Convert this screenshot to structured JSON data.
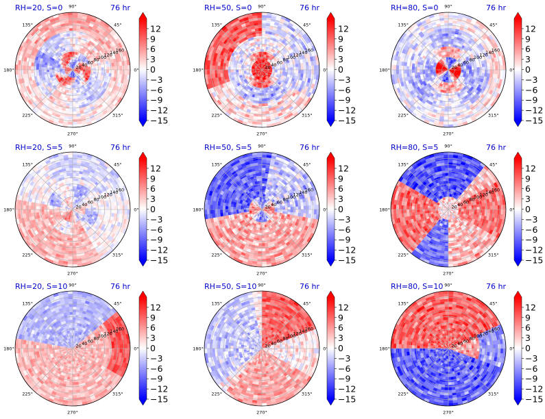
{
  "figure": {
    "colormap": {
      "low": "#0000ff",
      "mid": "#ffffff",
      "high": "#ff0000"
    },
    "title_color": "#0000cc"
  },
  "chart_data": [
    {
      "type": "heatmap",
      "title": "RH=20, S=0",
      "time_label": "76 hr",
      "pattern": "concentric core, ring of blue/red near center",
      "rh": 20,
      "s": 0
    },
    {
      "type": "heatmap",
      "title": "RH=50, S=0",
      "time_label": "76 hr",
      "pattern": "strong red core, red outer upper-left",
      "rh": 50,
      "s": 0
    },
    {
      "type": "heatmap",
      "title": "RH=80, S=0",
      "time_label": "76 hr",
      "pattern": "saturated red/blue core ring",
      "rh": 80,
      "s": 0
    },
    {
      "type": "heatmap",
      "title": "RH=20, S=5",
      "time_label": "76 hr",
      "pattern": "weak mixed, red lower-left",
      "rh": 20,
      "s": 5
    },
    {
      "type": "heatmap",
      "title": "RH=50, S=5",
      "time_label": "76 hr",
      "pattern": "blue upper-left, red core",
      "rh": 50,
      "s": 5
    },
    {
      "type": "heatmap",
      "title": "RH=80, S=5",
      "time_label": "76 hr",
      "pattern": "red left/right, blue top, blue lower-left",
      "rh": 80,
      "s": 5
    },
    {
      "type": "heatmap",
      "title": "RH=20, S=10",
      "time_label": "76 hr",
      "pattern": "blue upper, red lower, red east edge",
      "rh": 20,
      "s": 10
    },
    {
      "type": "heatmap",
      "title": "RH=50, S=10",
      "time_label": "76 hr",
      "pattern": "red upper-right, red lower, blue left",
      "rh": 50,
      "s": 10
    },
    {
      "type": "heatmap",
      "title": "RH=80, S=10",
      "time_label": "76 hr",
      "pattern": "red top half, blue bottom half",
      "rh": 80,
      "s": 10
    }
  ],
  "polar_axes": {
    "angle_labels": [
      "0°",
      "45°",
      "90°",
      "135°",
      "180°",
      "225°",
      "270°",
      "315°"
    ],
    "angle_values": [
      0,
      45,
      90,
      135,
      180,
      225,
      270,
      315
    ],
    "radial_labels": [
      "20",
      "40",
      "60",
      "80",
      "100",
      "120",
      "140",
      "160"
    ],
    "radial_values": [
      20,
      40,
      60,
      80,
      100,
      120,
      140,
      160
    ],
    "radial_max": 180,
    "radial_label_angle_deg": 22.5
  },
  "colorbar": {
    "tick_labels": [
      "12",
      "9",
      "6",
      "3",
      "0",
      "−3",
      "−6",
      "−9",
      "−12",
      "−15"
    ],
    "tick_values": [
      12,
      9,
      6,
      3,
      0,
      -3,
      -6,
      -9,
      -12,
      -15
    ],
    "vmin": -15,
    "vmax": 15,
    "extend": "both"
  }
}
